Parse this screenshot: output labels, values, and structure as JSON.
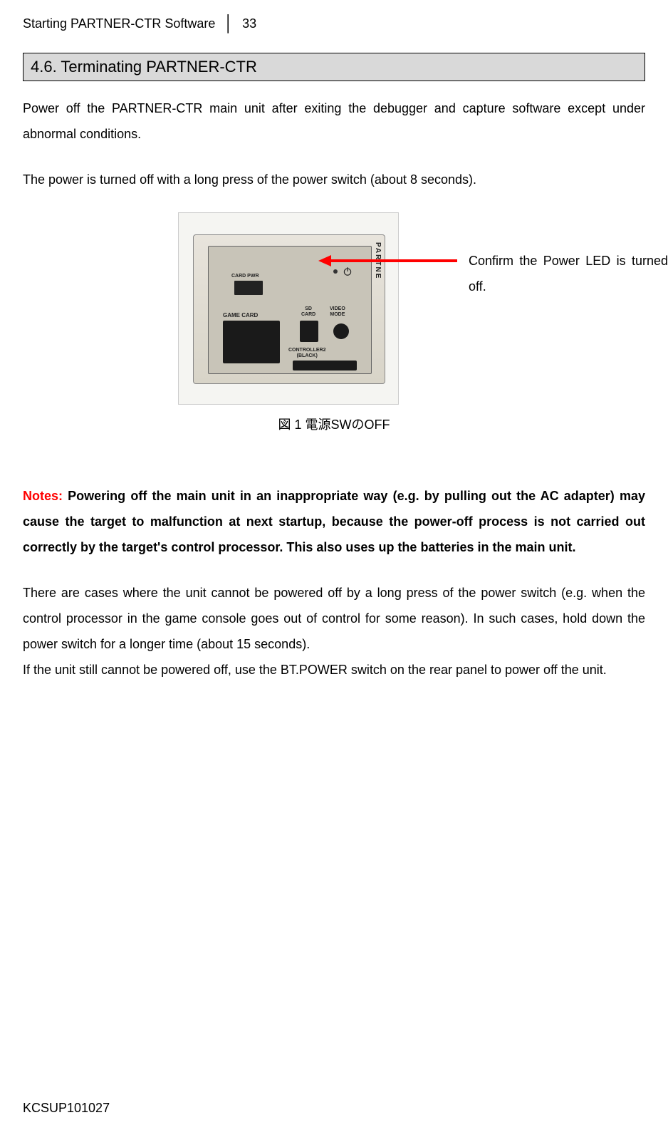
{
  "header": {
    "title": "Starting PARTNER-CTR Software",
    "separator": "│",
    "page": "33"
  },
  "section": {
    "number": "4.6.",
    "title": "Terminating PARTNER-CTR"
  },
  "para1": "Power off the PARTNER-CTR main unit after exiting the debugger and capture software except under abnormal conditions.",
  "para2": "The power is turned off with a long press of the power switch (about 8 seconds).",
  "figure": {
    "caption": "図 1  電源SWのOFF",
    "callout": "Confirm the Power LED is turned off.",
    "device_labels": {
      "card_pwr": "CARD PWR",
      "game_card": "GAME CARD",
      "sd_card": "SD\nCARD",
      "video_mode": "VIDEO\nMODE",
      "controller": "CONTROLLER2\n(BLACK)",
      "brand": "PARTNE"
    }
  },
  "notes": {
    "label": "Notes:",
    "text": " Powering off the main unit in an inappropriate way (e.g. by pulling out the AC adapter) may cause the target to malfunction at next startup, because the power-off process is not carried out correctly by the target's control processor. This also uses up the batteries in the main unit."
  },
  "para3": "There are cases where the unit cannot be powered off by a long press of the power switch (e.g. when the control processor in the game console goes out of control for some reason). In such cases, hold down the power switch for a longer time (about 15 seconds).",
  "para4": "If the unit still cannot be powered off, use the BT.POWER switch on the rear panel to power off the unit.",
  "footer": "KCSUP101027",
  "colors": {
    "notes_red": "#ff0000",
    "arrow_red": "#ff0000",
    "heading_bg": "#d9d9d9",
    "text": "#000000",
    "bg": "#ffffff"
  }
}
